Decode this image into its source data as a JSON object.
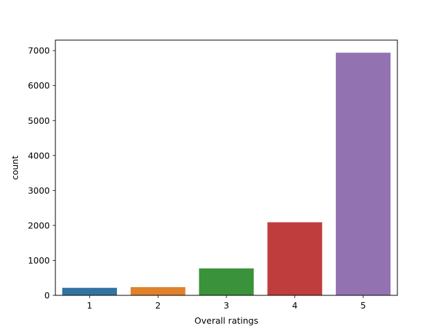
{
  "chart_data": {
    "type": "bar",
    "title": "",
    "xlabel": "Overall ratings",
    "ylabel": "count",
    "categories": [
      "1",
      "2",
      "3",
      "4",
      "5"
    ],
    "values": [
      215,
      235,
      770,
      2090,
      6940
    ],
    "ylim": [
      0,
      7300
    ],
    "yticks": [
      0,
      1000,
      2000,
      3000,
      4000,
      5000,
      6000,
      7000
    ],
    "grid": false,
    "legend": "none",
    "colors": [
      "#3274a1",
      "#e1812c",
      "#3a923a",
      "#c03d3e",
      "#9372b2"
    ]
  }
}
